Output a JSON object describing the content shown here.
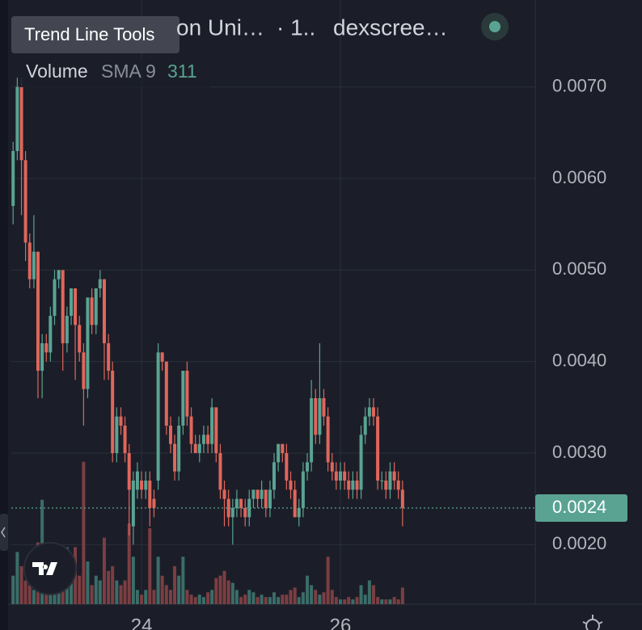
{
  "toolbar_tooltip": "Trend Line Tools",
  "header": {
    "symbol": "on Uni…",
    "interval": "· 1..",
    "source": "dexscree…"
  },
  "volume_legend": {
    "name": "Volume",
    "study": "SMA 9",
    "value": 311
  },
  "chart_data": {
    "type": "candlestick",
    "x": [
      22.708,
      22.75,
      22.792,
      22.833,
      22.875,
      22.917,
      22.958,
      23,
      23.042,
      23.083,
      23.125,
      23.167,
      23.208,
      23.25,
      23.292,
      23.333,
      23.375,
      23.417,
      23.458,
      23.5,
      23.542,
      23.583,
      23.625,
      23.667,
      23.708,
      23.75,
      23.792,
      23.833,
      23.875,
      23.917,
      23.958,
      24,
      24.042,
      24.083,
      24.125,
      24.167,
      24.208,
      24.25,
      24.292,
      24.333,
      24.375,
      24.417,
      24.458,
      24.5,
      24.542,
      24.583,
      24.625,
      24.667,
      24.708,
      24.75,
      24.792,
      24.833,
      24.875,
      24.917,
      24.958,
      25,
      25.042,
      25.083,
      25.125,
      25.167,
      25.208,
      25.25,
      25.292,
      25.333,
      25.375,
      25.417,
      25.458,
      25.5,
      25.542,
      25.583,
      25.625,
      25.667,
      25.708,
      25.75,
      25.792,
      25.833,
      25.875,
      25.917,
      25.958,
      26,
      26.042,
      26.083,
      26.125,
      26.167,
      26.208,
      26.25,
      26.292,
      26.333,
      26.375,
      26.417,
      26.458,
      26.5,
      26.542,
      26.583,
      26.625
    ],
    "open": [
      0.0057,
      0.0063,
      0.007,
      0.0062,
      0.0053,
      0.0049,
      0.0052,
      0.0039,
      0.0042,
      0.0041,
      0.0045,
      0.0049,
      0.005,
      0.0042,
      0.0045,
      0.0048,
      0.0044,
      0.0041,
      0.0037,
      0.0047,
      0.0044,
      0.0048,
      0.0049,
      0.0042,
      0.0039,
      0.003,
      0.0034,
      0.0033,
      0.003,
      0.0022,
      0.0026,
      0.0027,
      0.0026,
      0.0027,
      0.0025,
      0.0027,
      0.0041,
      0.004,
      0.0033,
      0.0031,
      0.0028,
      0.0033,
      0.0039,
      0.0034,
      0.0031,
      0.003,
      0.0031,
      0.0032,
      0.0031,
      0.0035,
      0.003,
      0.0026,
      0.0025,
      0.0023,
      0.0024,
      0.0025,
      0.0024,
      0.0023,
      0.0025,
      0.0026,
      0.0025,
      0.0026,
      0.0024,
      0.0026,
      0.0029,
      0.0031,
      0.003,
      0.0027,
      0.0026,
      0.0023,
      0.0024,
      0.0028,
      0.0029,
      0.0036,
      0.0032,
      0.0036,
      0.0034,
      0.0029,
      0.0028,
      0.0027,
      0.0028,
      0.0027,
      0.0026,
      0.0027,
      0.0026,
      0.0032,
      0.0034,
      0.0035,
      0.0034,
      0.0027,
      0.0027,
      0.0026,
      0.0028,
      0.0027,
      0.0026
    ],
    "high": [
      0.0064,
      0.0071,
      0.0071,
      0.0063,
      0.0054,
      0.0056,
      0.0052,
      0.0043,
      0.0043,
      0.0046,
      0.005,
      0.005,
      0.005,
      0.0046,
      0.0048,
      0.0048,
      0.0045,
      0.0042,
      0.0047,
      0.0048,
      0.0048,
      0.005,
      0.0049,
      0.0043,
      0.004,
      0.0035,
      0.0035,
      0.0034,
      0.0031,
      0.0028,
      0.0029,
      0.0028,
      0.0028,
      0.0028,
      0.0026,
      0.0042,
      0.0041,
      0.004,
      0.0034,
      0.0032,
      0.0034,
      0.0039,
      0.004,
      0.0035,
      0.0032,
      0.0032,
      0.0033,
      0.0033,
      0.0036,
      0.0035,
      0.0031,
      0.0027,
      0.0026,
      0.0025,
      0.0026,
      0.0025,
      0.0025,
      0.0026,
      0.0026,
      0.0026,
      0.0027,
      0.0026,
      0.0027,
      0.003,
      0.0031,
      0.0031,
      0.0031,
      0.0028,
      0.0027,
      0.0025,
      0.0029,
      0.003,
      0.0038,
      0.0037,
      0.0042,
      0.0037,
      0.0035,
      0.003,
      0.0029,
      0.0029,
      0.0029,
      0.0028,
      0.0028,
      0.0028,
      0.0033,
      0.0035,
      0.0036,
      0.0036,
      0.0035,
      0.0028,
      0.0028,
      0.0029,
      0.0029,
      0.0028,
      0.0027
    ],
    "low": [
      0.0055,
      0.0062,
      0.0056,
      0.0051,
      0.0048,
      0.0048,
      0.0036,
      0.0036,
      0.004,
      0.004,
      0.0044,
      0.0048,
      0.0039,
      0.0041,
      0.0044,
      0.0038,
      0.004,
      0.0033,
      0.0036,
      0.0043,
      0.0043,
      0.0047,
      0.0038,
      0.0038,
      0.0029,
      0.0029,
      0.0032,
      0.0029,
      0.0021,
      0.002,
      0.0025,
      0.0025,
      0.0025,
      0.0022,
      0.0023,
      0.0026,
      0.0039,
      0.0032,
      0.003,
      0.0027,
      0.0027,
      0.0032,
      0.0033,
      0.003,
      0.003,
      0.0029,
      0.003,
      0.003,
      0.003,
      0.0029,
      0.0025,
      0.0022,
      0.0022,
      0.002,
      0.0023,
      0.0023,
      0.0022,
      0.0022,
      0.0024,
      0.0024,
      0.0024,
      0.0023,
      0.0023,
      0.0025,
      0.0028,
      0.0029,
      0.0026,
      0.0025,
      0.0023,
      0.0022,
      0.0023,
      0.0027,
      0.0028,
      0.0031,
      0.0031,
      0.0033,
      0.0028,
      0.0027,
      0.0026,
      0.0026,
      0.0026,
      0.0025,
      0.0025,
      0.0025,
      0.0025,
      0.0031,
      0.0033,
      0.0033,
      0.0026,
      0.0026,
      0.0025,
      0.0025,
      0.0026,
      0.0025,
      0.0022
    ],
    "close": [
      0.0063,
      0.007,
      0.0062,
      0.0053,
      0.0049,
      0.0052,
      0.0039,
      0.0042,
      0.0041,
      0.0045,
      0.0049,
      0.005,
      0.0042,
      0.0045,
      0.0048,
      0.0044,
      0.0041,
      0.0037,
      0.0047,
      0.0044,
      0.0048,
      0.0049,
      0.0042,
      0.0039,
      0.003,
      0.0034,
      0.0033,
      0.003,
      0.0026,
      0.0027,
      0.0028,
      0.0026,
      0.0027,
      0.0024,
      0.0024,
      0.0041,
      0.004,
      0.0033,
      0.0031,
      0.0028,
      0.0033,
      0.0039,
      0.0034,
      0.0031,
      0.003,
      0.0031,
      0.0032,
      0.0031,
      0.0035,
      0.003,
      0.0026,
      0.0025,
      0.0023,
      0.0024,
      0.0025,
      0.0024,
      0.0023,
      0.0025,
      0.0026,
      0.0025,
      0.0026,
      0.0024,
      0.0026,
      0.0029,
      0.0031,
      0.003,
      0.0027,
      0.0026,
      0.0023,
      0.0024,
      0.0028,
      0.0029,
      0.0036,
      0.0032,
      0.0036,
      0.0034,
      0.0029,
      0.0028,
      0.0027,
      0.0028,
      0.0027,
      0.0026,
      0.0027,
      0.0026,
      0.0032,
      0.0034,
      0.0035,
      0.0034,
      0.0027,
      0.0027,
      0.0026,
      0.0028,
      0.0027,
      0.0026,
      0.0024
    ],
    "volume": [
      600,
      1100,
      800,
      500,
      400,
      300,
      1300,
      2200,
      500,
      400,
      600,
      300,
      700,
      1200,
      500,
      1200,
      600,
      3000,
      900,
      400,
      600,
      500,
      1400,
      700,
      800,
      500,
      400,
      500,
      1700,
      1000,
      300,
      200,
      300,
      1600,
      300,
      1000,
      600,
      400,
      300,
      800,
      600,
      1000,
      300,
      200,
      150,
      200,
      150,
      250,
      300,
      550,
      600,
      700,
      500,
      450,
      300,
      150,
      200,
      300,
      250,
      150,
      200,
      150,
      150,
      250,
      150,
      200,
      200,
      300,
      350,
      150,
      250,
      600,
      400,
      300,
      200,
      250,
      1000,
      300,
      150,
      100,
      100,
      150,
      100,
      150,
      400,
      200,
      500,
      400,
      150,
      100,
      100,
      100,
      150,
      100,
      350
    ],
    "up_color": "#5aa393",
    "down_color": "#e0665c",
    "volume_up_color": "#3b6d68",
    "volume_down_color": "#7c3e42",
    "xlim": [
      22.69,
      27.96
    ],
    "xticks": [
      24,
      26
    ],
    "ylim": [
      0.00135,
      0.00795
    ],
    "yticks": [
      {
        "value": 0.002,
        "label": "0.0020"
      },
      {
        "value": 0.003,
        "label": "0.0030"
      },
      {
        "value": 0.004,
        "label": "0.0040"
      },
      {
        "value": 0.005,
        "label": "0.0050"
      },
      {
        "value": 0.006,
        "label": "0.0060"
      },
      {
        "value": 0.007,
        "label": "0.0070"
      }
    ],
    "volume_ylim": [
      0,
      3200
    ],
    "last_price": {
      "value": 0.0024,
      "label": "0.0024"
    },
    "grid": true
  }
}
